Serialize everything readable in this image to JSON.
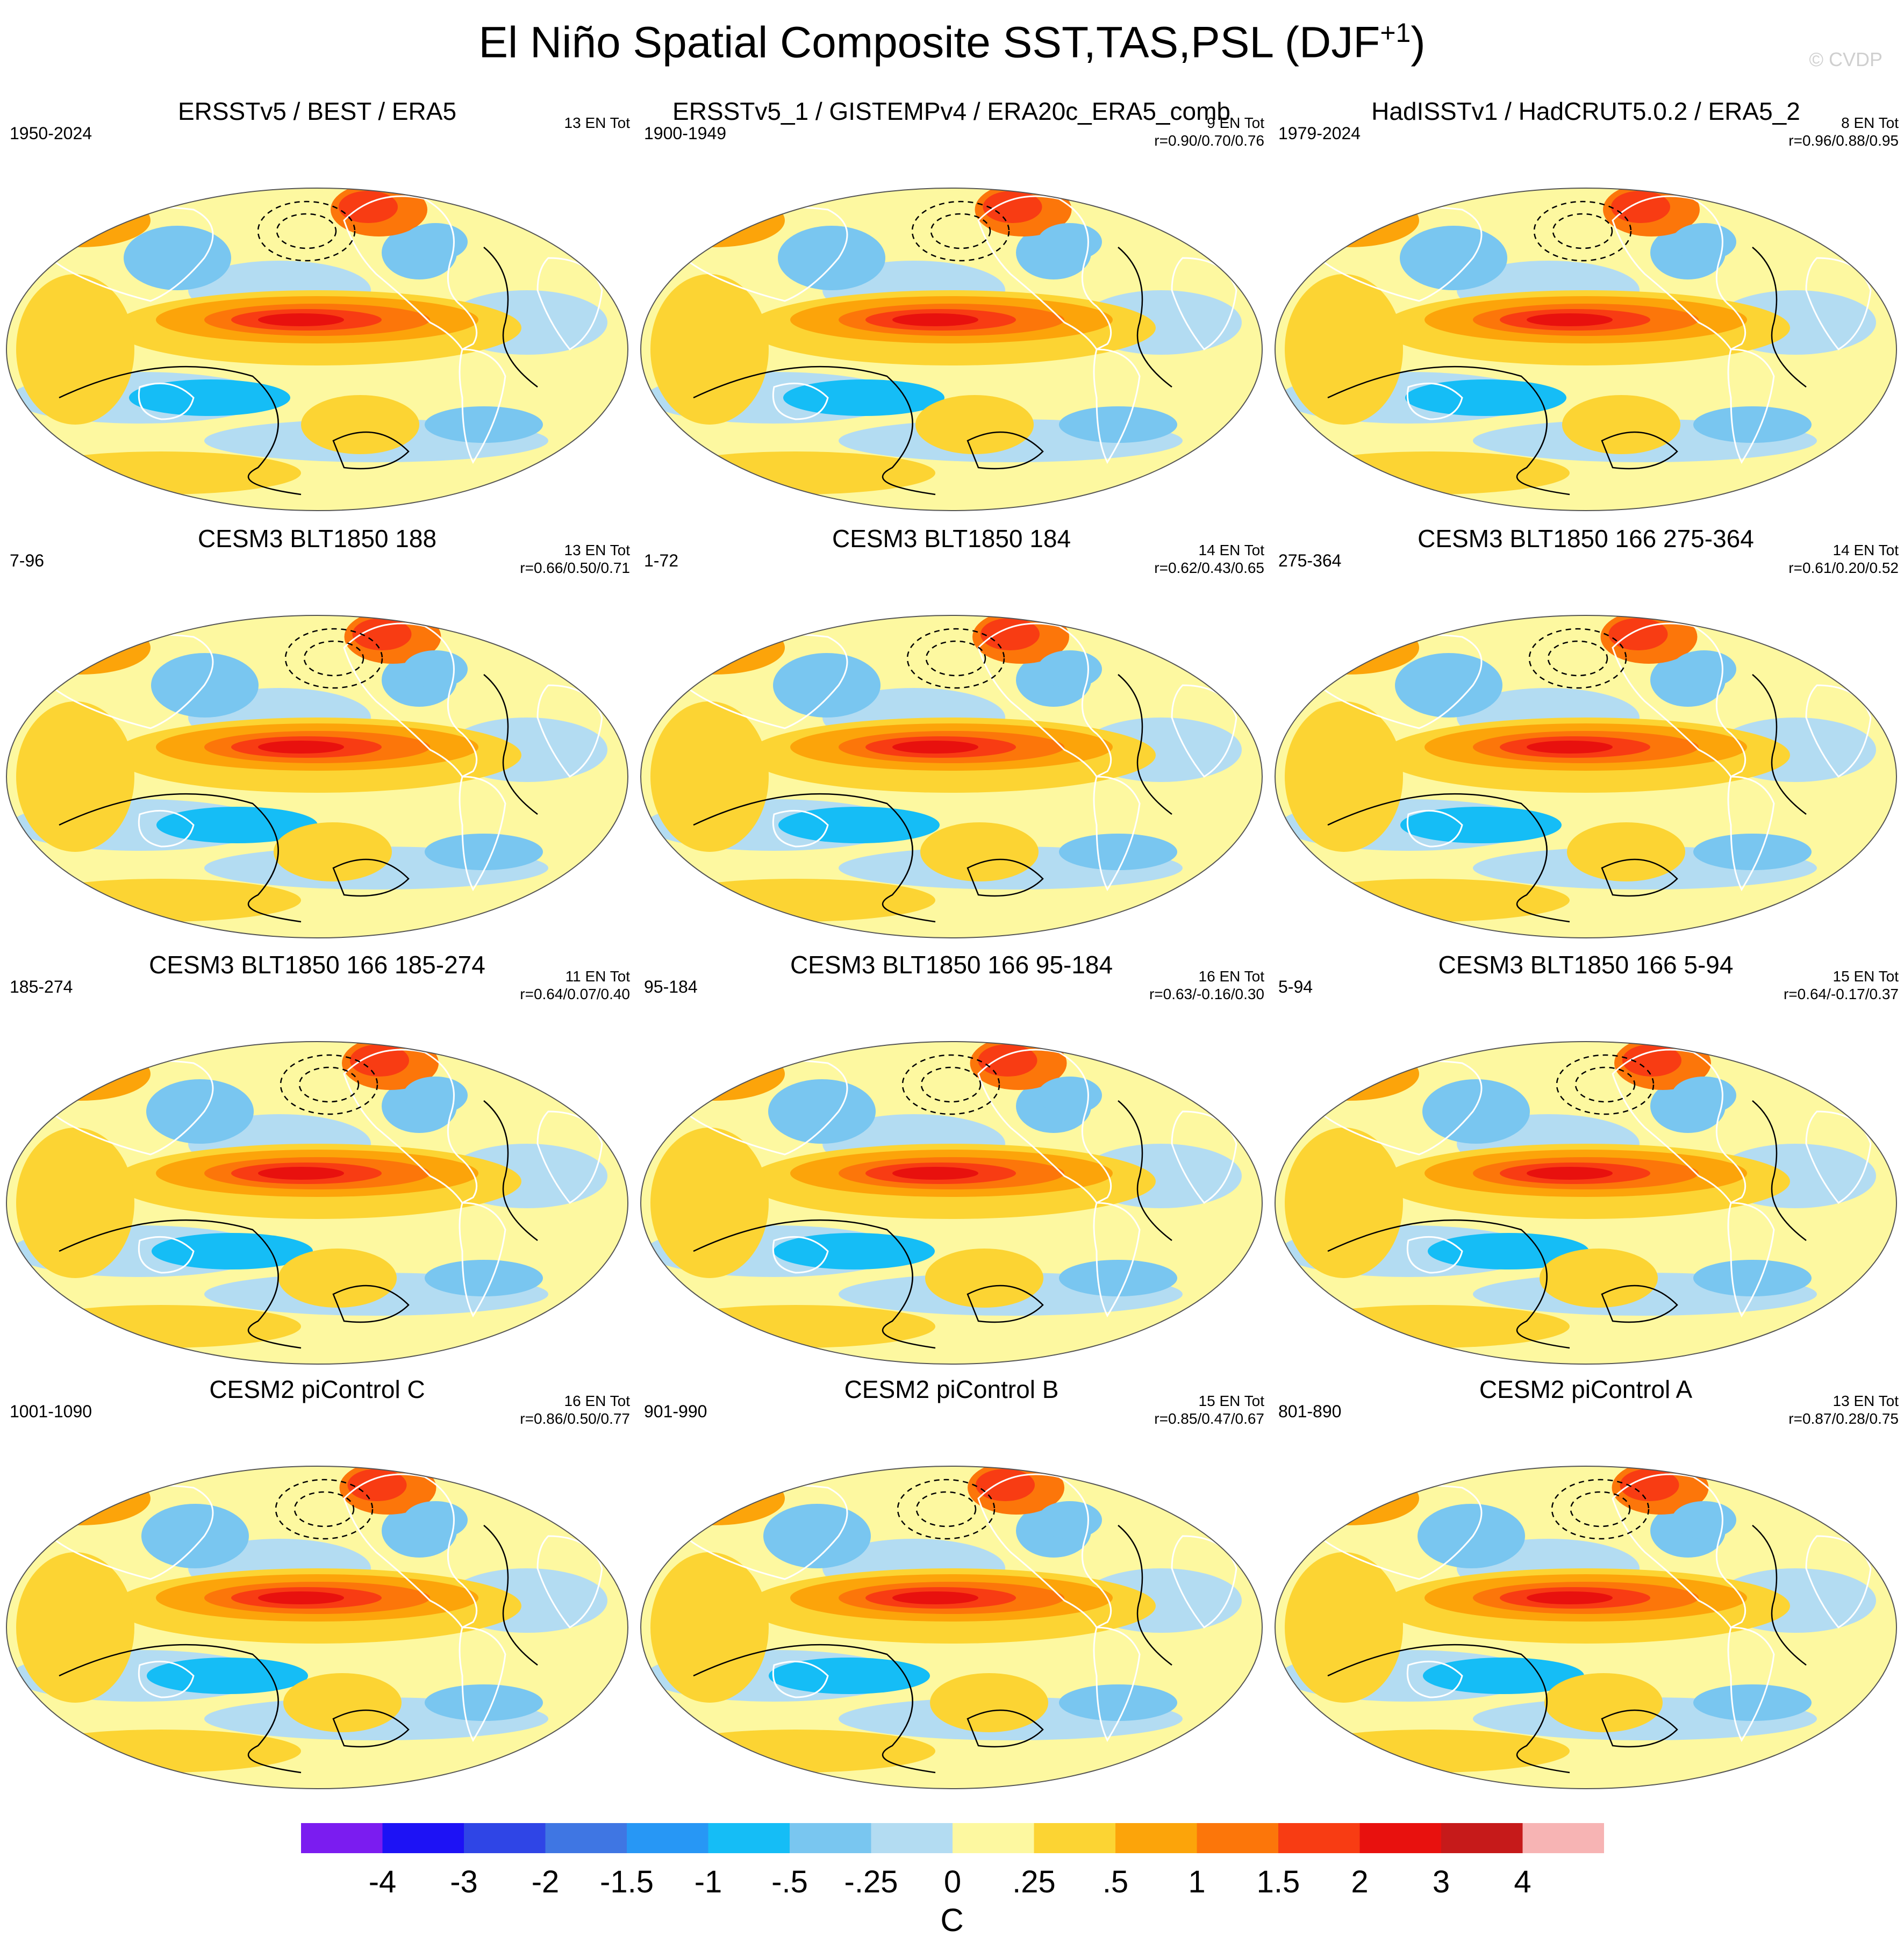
{
  "title": "El Niño Spatial Composite SST,TAS,PSL (DJF",
  "title_superscript": "+1",
  "title_close": ")",
  "watermark": "© CVDP",
  "colors": {
    "bins": [
      "#7b1cf0",
      "#1d12f5",
      "#2f45e6",
      "#3f76e3",
      "#2797f5",
      "#15bdf6",
      "#79c6f0",
      "#b3dcf2",
      "#fdf8a0",
      "#fcd433",
      "#fca40a",
      "#fc760a",
      "#f83c13",
      "#e8110e",
      "#c61a1a",
      "#f7b4b4"
    ],
    "contour": "#000000",
    "coastline": "#ffffff"
  },
  "colorbar": {
    "labels": [
      "-4",
      "-3",
      "-2",
      "-1.5",
      "-1",
      "-.5",
      "-.25",
      "0",
      ".25",
      ".5",
      "1",
      "1.5",
      "2",
      "3",
      "4"
    ],
    "units": "C"
  },
  "panels": [
    {
      "title": "ERSSTv5 / BEST / ERA5",
      "years": "1950-2024",
      "count": "13 EN Tot",
      "r": ""
    },
    {
      "title": "ERSSTv5_1 / GISTEMPv4 / ERA20c_ERA5_comb",
      "years": "1900-1949",
      "count": "9 EN Tot",
      "r": "r=0.90/0.70/0.76"
    },
    {
      "title": "HadISSTv1 / HadCRUT5.0.2 / ERA5_2",
      "years": "1979-2024",
      "count": "8 EN Tot",
      "r": "r=0.96/0.88/0.95"
    },
    {
      "title": "CESM3 BLT1850 188",
      "years": "7-96",
      "count": "13 EN Tot",
      "r": "r=0.66/0.50/0.71"
    },
    {
      "title": "CESM3 BLT1850 184",
      "years": "1-72",
      "count": "14 EN Tot",
      "r": "r=0.62/0.43/0.65"
    },
    {
      "title": "CESM3 BLT1850 166 275-364",
      "years": "275-364",
      "count": "14 EN Tot",
      "r": "r=0.61/0.20/0.52"
    },
    {
      "title": "CESM3 BLT1850 166 185-274",
      "years": "185-274",
      "count": "11 EN Tot",
      "r": "r=0.64/0.07/0.40"
    },
    {
      "title": "CESM3 BLT1850 166 95-184",
      "years": "95-184",
      "count": "16 EN Tot",
      "r": "r=0.63/-0.16/0.30"
    },
    {
      "title": "CESM3 BLT1850 166 5-94",
      "years": "5-94",
      "count": "15 EN Tot",
      "r": "r=0.64/-0.17/0.37"
    },
    {
      "title": "CESM2 piControl C",
      "years": "1001-1090",
      "count": "16 EN Tot",
      "r": "r=0.86/0.50/0.77"
    },
    {
      "title": "CESM2 piControl B",
      "years": "901-990",
      "count": "15 EN Tot",
      "r": "r=0.85/0.47/0.67"
    },
    {
      "title": "CESM2 piControl A",
      "years": "801-890",
      "count": "13 EN Tot",
      "r": "r=0.87/0.28/0.75"
    }
  ]
}
